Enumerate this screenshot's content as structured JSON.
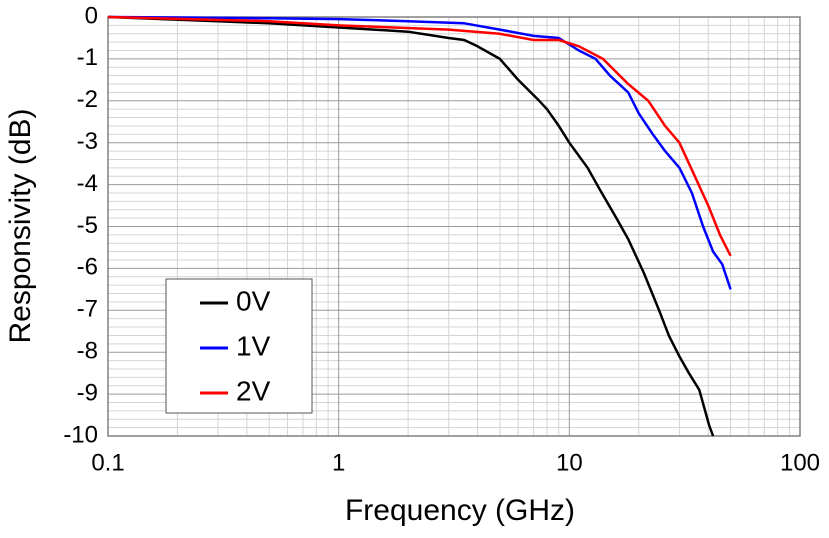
{
  "chart_data": {
    "type": "line",
    "xlabel": "Frequency (GHz)",
    "ylabel": "Responsivity (dB)",
    "xscale": "log",
    "xlim": [
      0.1,
      100
    ],
    "xticks": [
      0.1,
      1,
      10,
      100
    ],
    "ylim": [
      -10,
      0
    ],
    "yticks": [
      0,
      -1,
      -2,
      -3,
      -4,
      -5,
      -6,
      -7,
      -8,
      -9,
      -10
    ],
    "xminor": [
      0.2,
      0.3,
      0.4,
      0.5,
      0.6,
      0.7,
      0.8,
      0.9,
      2,
      3,
      4,
      5,
      6,
      7,
      8,
      9,
      20,
      30,
      40,
      50,
      60,
      70,
      80,
      90
    ],
    "yminor": [
      -0.2,
      -0.4,
      -0.6,
      -0.8,
      -1.2,
      -1.4,
      -1.6,
      -1.8,
      -2.2,
      -2.4,
      -2.6,
      -2.8,
      -3.2,
      -3.4,
      -3.6,
      -3.8,
      -4.2,
      -4.4,
      -4.6,
      -4.8,
      -5.2,
      -5.4,
      -5.6,
      -5.8,
      -6.2,
      -6.4,
      -6.6,
      -6.8,
      -7.2,
      -7.4,
      -7.6,
      -7.8,
      -8.2,
      -8.4,
      -8.6,
      -8.8,
      -9.2,
      -9.4,
      -9.6,
      -9.8
    ],
    "grid": true,
    "legend": "lower left",
    "series": [
      {
        "name": "0V",
        "color": "#000000",
        "x": [
          0.1,
          0.3,
          0.5,
          1,
          2,
          3,
          3.5,
          4,
          5,
          6,
          7.4,
          8,
          9,
          10,
          12,
          13.5,
          16,
          18,
          21,
          24.5,
          27,
          30,
          33,
          36.6,
          40.4,
          42
        ],
        "values": [
          0,
          -0.1,
          -0.15,
          -0.25,
          -0.35,
          -0.5,
          -0.55,
          -0.7,
          -1.0,
          -1.5,
          -2.0,
          -2.2,
          -2.6,
          -3.0,
          -3.6,
          -4.1,
          -4.8,
          -5.3,
          -6.1,
          -7.0,
          -7.6,
          -8.1,
          -8.5,
          -8.9,
          -9.75,
          -10
        ]
      },
      {
        "name": "1V",
        "color": "#0000ff",
        "x": [
          0.1,
          0.5,
          1,
          2,
          3.5,
          5,
          7,
          9,
          11,
          13,
          15,
          18,
          20,
          23,
          26,
          30,
          34,
          38,
          42,
          46,
          50
        ],
        "values": [
          0,
          -0.03,
          -0.05,
          -0.1,
          -0.15,
          -0.3,
          -0.45,
          -0.5,
          -0.8,
          -1.0,
          -1.4,
          -1.8,
          -2.3,
          -2.8,
          -3.2,
          -3.6,
          -4.2,
          -5.0,
          -5.6,
          -5.9,
          -6.5
        ]
      },
      {
        "name": "2V",
        "color": "#ff0000",
        "x": [
          0.1,
          0.5,
          1,
          3,
          5,
          7,
          9,
          11,
          14,
          18,
          22,
          26,
          30,
          35,
          40,
          45,
          50
        ],
        "values": [
          0,
          -0.1,
          -0.2,
          -0.3,
          -0.4,
          -0.55,
          -0.55,
          -0.7,
          -1.0,
          -1.6,
          -2.0,
          -2.6,
          -3.0,
          -3.8,
          -4.5,
          -5.2,
          -5.7
        ]
      }
    ]
  }
}
